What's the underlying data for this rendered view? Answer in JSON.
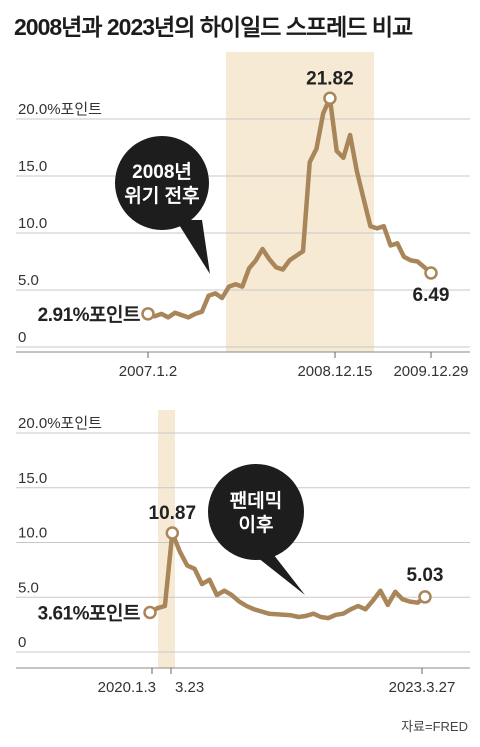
{
  "title": "2008년과 2023년의 하이일드 스프레드 비교",
  "source": "자료=FRED",
  "colors": {
    "line": "#a9865a",
    "highlight": "#f7ead5",
    "grid": "#c8c8c8",
    "bubble": "#1d1d1d",
    "text": "#222222"
  },
  "chart_data": [
    {
      "type": "line",
      "ylim": [
        0,
        20
      ],
      "yticks": [
        {
          "value": 20,
          "label": "20.0%포인트"
        },
        {
          "value": 15,
          "label": "15.0"
        },
        {
          "value": 10,
          "label": "10.0"
        },
        {
          "value": 5,
          "label": "5.0"
        },
        {
          "value": 0,
          "label": "0"
        }
      ],
      "xticks": [
        "2007.1.2",
        "2008.12.15",
        "2009.12.29"
      ],
      "highlight_label": "",
      "bubble": {
        "lines": [
          "2008년",
          "위기 전후"
        ]
      },
      "start": {
        "label": "2.91%포인트",
        "value": 2.91
      },
      "peak": {
        "label": "21.82",
        "value": 21.82
      },
      "end": {
        "label": "6.49",
        "value": 6.49
      },
      "series": [
        {
          "values": [
            2.91,
            2.7,
            2.9,
            2.6,
            3.0,
            2.8,
            2.6,
            2.9,
            3.1,
            4.5,
            4.7,
            4.3,
            5.3,
            5.5,
            5.3,
            6.9,
            7.6,
            8.6,
            7.7,
            7.0,
            6.8,
            7.6,
            8.0,
            8.4,
            16.2,
            17.4,
            20.5,
            21.82,
            17.2,
            16.6,
            18.6,
            15.4,
            13.0,
            10.6,
            10.4,
            10.6,
            8.9,
            9.1,
            7.9,
            7.6,
            7.5,
            7.0,
            6.49
          ]
        }
      ]
    },
    {
      "type": "line",
      "ylim": [
        0,
        20
      ],
      "yticks": [
        {
          "value": 20,
          "label": "20.0%포인트"
        },
        {
          "value": 15,
          "label": "15.0"
        },
        {
          "value": 10,
          "label": "10.0"
        },
        {
          "value": 5,
          "label": "5.0"
        },
        {
          "value": 0,
          "label": "0"
        }
      ],
      "xticks": [
        "2020.1.3",
        "3.23",
        "2023.3.27"
      ],
      "highlight_label": "",
      "bubble": {
        "lines": [
          "팬데믹",
          "이후"
        ]
      },
      "start": {
        "label": "3.61%포인트",
        "value": 3.61
      },
      "peak": {
        "label": "10.87",
        "value": 10.87
      },
      "end": {
        "label": "5.03",
        "value": 5.03
      },
      "series": [
        {
          "values": [
            3.61,
            4.0,
            4.2,
            10.87,
            9.2,
            7.9,
            7.6,
            6.2,
            6.6,
            5.2,
            5.6,
            5.2,
            4.6,
            4.2,
            3.9,
            3.7,
            3.5,
            3.45,
            3.4,
            3.35,
            3.2,
            3.3,
            3.5,
            3.2,
            3.1,
            3.4,
            3.5,
            3.9,
            4.2,
            3.9,
            4.7,
            5.6,
            4.3,
            5.5,
            4.8,
            4.6,
            4.5,
            5.03
          ]
        }
      ]
    }
  ]
}
